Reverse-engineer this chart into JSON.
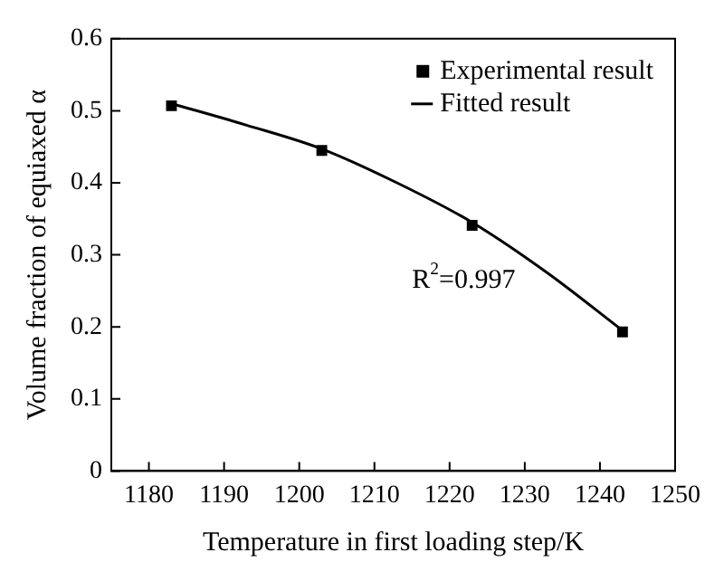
{
  "chart_data": {
    "type": "scatter",
    "xlabel": "Temperature in first loading step/K",
    "ylabel": "Volume fraction of equiaxed α",
    "series": [
      {
        "name": "Experimental result",
        "type": "scatter",
        "color": "#000000",
        "marker": "square",
        "x": [
          1183,
          1203,
          1223,
          1243
        ],
        "values": [
          0.507,
          0.445,
          0.341,
          0.193
        ]
      },
      {
        "name": "Fitted result",
        "type": "line",
        "color": "#000000",
        "marker": "none",
        "line_style": "solid",
        "x": [
          1183,
          1193,
          1203,
          1213,
          1223,
          1233,
          1243
        ],
        "values": [
          0.51,
          0.48,
          0.447,
          0.4,
          0.345,
          0.275,
          0.195
        ]
      }
    ],
    "xlim": [
      1175,
      1250
    ],
    "xticks": [
      1180,
      1190,
      1200,
      1210,
      1220,
      1230,
      1240,
      1250
    ],
    "ylim": [
      0,
      0.6
    ],
    "yticks": [
      0,
      0.1,
      0.2,
      0.3,
      0.4,
      0.5,
      0.6
    ],
    "grid": false,
    "legend": "top right",
    "annotations": [
      "R$^{2}$=0.997"
    ]
  }
}
